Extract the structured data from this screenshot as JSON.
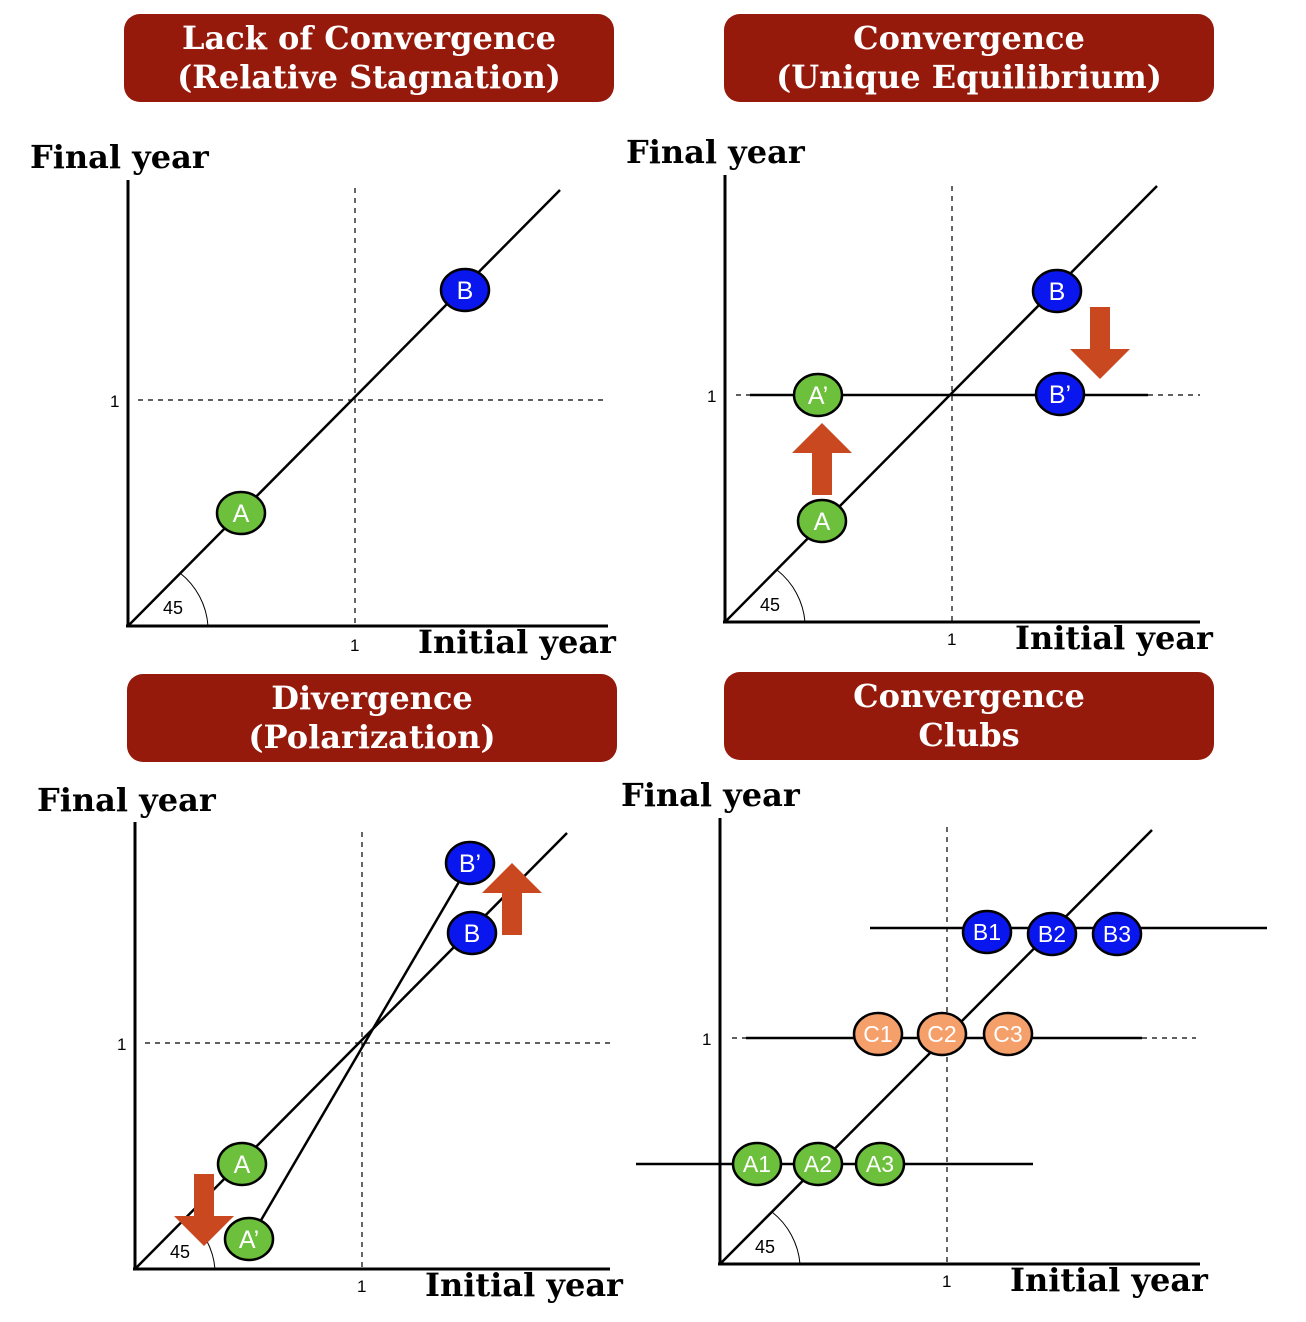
{
  "colors": {
    "banner": "#951a0c",
    "arrow": "#c9481f",
    "green": "#6cc03c",
    "blue": "#0a16ee",
    "orange": "#f5a06a"
  },
  "panels": [
    {
      "id": "p1",
      "title_lines": [
        "Lack of Convergence",
        "(Relative Stagnation)"
      ],
      "y_label": "Final year",
      "x_label": "Initial year",
      "tick_x": "1",
      "tick_y": "1",
      "angle_label": "45",
      "nodes": [
        {
          "label": "A",
          "color": "green"
        },
        {
          "label": "B",
          "color": "blue"
        }
      ]
    },
    {
      "id": "p2",
      "title_lines": [
        "Convergence",
        "(Unique Equilibrium)"
      ],
      "y_label": "Final year",
      "x_label": "Initial year",
      "tick_x": "1",
      "tick_y": "1",
      "angle_label": "45",
      "nodes": [
        {
          "label": "A",
          "color": "green"
        },
        {
          "label": "A’",
          "color": "green"
        },
        {
          "label": "B",
          "color": "blue"
        },
        {
          "label": "B’",
          "color": "blue"
        }
      ]
    },
    {
      "id": "p3",
      "title_lines": [
        "Divergence",
        "(Polarization)"
      ],
      "y_label": "Final year",
      "x_label": "Initial year",
      "tick_x": "1",
      "tick_y": "1",
      "angle_label": "45",
      "nodes": [
        {
          "label": "A",
          "color": "green"
        },
        {
          "label": "A’",
          "color": "green"
        },
        {
          "label": "B",
          "color": "blue"
        },
        {
          "label": "B’",
          "color": "blue"
        }
      ]
    },
    {
      "id": "p4",
      "title_lines": [
        "Convergence",
        "Clubs"
      ],
      "y_label": "Final year",
      "x_label": "Initial year",
      "tick_x": "1",
      "tick_y": "1",
      "angle_label": "45",
      "nodes": [
        {
          "label": "A1",
          "color": "green"
        },
        {
          "label": "A2",
          "color": "green"
        },
        {
          "label": "A3",
          "color": "green"
        },
        {
          "label": "C1",
          "color": "orange"
        },
        {
          "label": "C2",
          "color": "orange"
        },
        {
          "label": "C3",
          "color": "orange"
        },
        {
          "label": "B1",
          "color": "blue"
        },
        {
          "label": "B2",
          "color": "blue"
        },
        {
          "label": "B3",
          "color": "blue"
        }
      ]
    }
  ]
}
